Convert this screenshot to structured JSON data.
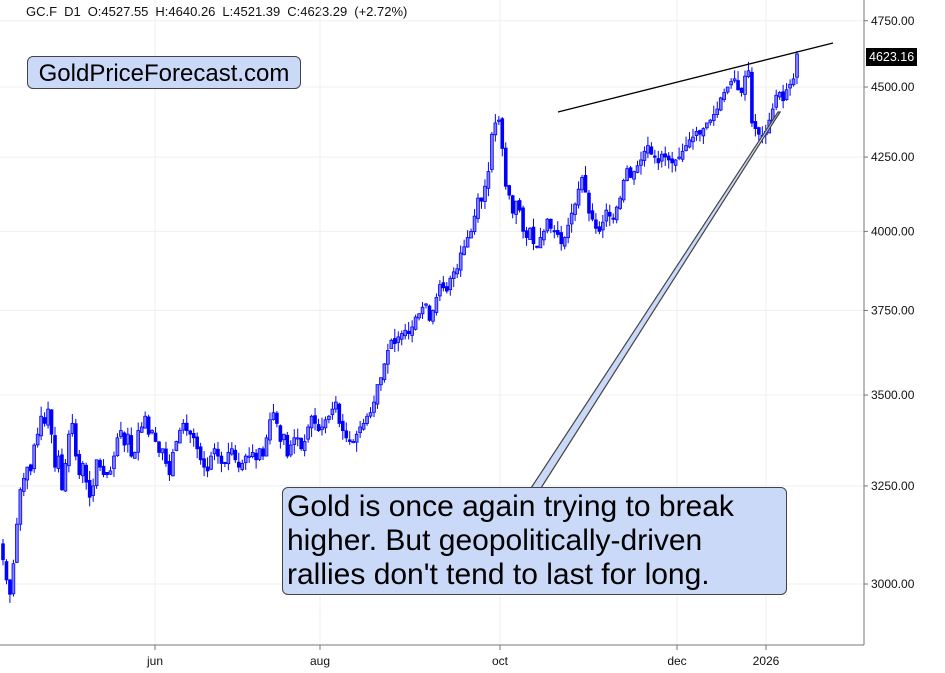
{
  "header": {
    "symbol": "GC.F",
    "timeframe": "D1",
    "open": "O:4527.55",
    "high": "H:4640.26",
    "low": "L:4521.39",
    "close": "C:4623.29",
    "change": "(+2.72%)"
  },
  "price_tag": "4623.16",
  "brand": "GoldPriceForecast.com",
  "callout": {
    "lines": [
      "Gold is once again trying to break",
      "higher. But geopolitically-driven",
      "rallies don't tend to last for long."
    ]
  },
  "colors": {
    "candle": "#0000ff",
    "candle_up_fill": "#8080ff",
    "trendline": "#000000",
    "grid": "#efefef",
    "annotation_fill": "#c9d9f7",
    "price_tag_bg": "#000000"
  },
  "chart_data": {
    "type": "candlestick",
    "title": "GC.F D1",
    "scale": "log",
    "ylim": [
      2820,
      4800
    ],
    "yticks": [
      3000,
      3250,
      3500,
      3750,
      4000,
      4250,
      4500,
      4750
    ],
    "ytick_labels": [
      "3000.00",
      "3250.00",
      "3500.00",
      "3750.00",
      "4000.00",
      "4250.00",
      "4500.00",
      "4750.00"
    ],
    "xtick_labels": [
      "jun",
      "aug",
      "oct",
      "dec",
      "2026"
    ],
    "last_price": 4623.16,
    "grid": true,
    "closes": [
      3060,
      3010,
      2975,
      3050,
      3150,
      3240,
      3270,
      3300,
      3290,
      3360,
      3390,
      3440,
      3420,
      3460,
      3390,
      3300,
      3330,
      3240,
      3310,
      3390,
      3420,
      3330,
      3280,
      3310,
      3260,
      3220,
      3250,
      3320,
      3300,
      3280,
      3280,
      3290,
      3330,
      3380,
      3400,
      3360,
      3390,
      3330,
      3340,
      3400,
      3410,
      3440,
      3390,
      3400,
      3370,
      3340,
      3350,
      3310,
      3280,
      3340,
      3370,
      3400,
      3420,
      3400,
      3390,
      3380,
      3350,
      3320,
      3300,
      3290,
      3330,
      3350,
      3330,
      3310,
      3310,
      3340,
      3350,
      3320,
      3300,
      3310,
      3330,
      3330,
      3340,
      3320,
      3350,
      3330,
      3380,
      3430,
      3450,
      3420,
      3370,
      3390,
      3330,
      3360,
      3380,
      3380,
      3350,
      3370,
      3410,
      3440,
      3420,
      3400,
      3410,
      3430,
      3440,
      3460,
      3480,
      3420,
      3400,
      3380,
      3370,
      3370,
      3390,
      3410,
      3420,
      3440,
      3450,
      3480,
      3530,
      3550,
      3590,
      3630,
      3660,
      3650,
      3670,
      3680,
      3690,
      3680,
      3700,
      3730,
      3740,
      3760,
      3770,
      3720,
      3750,
      3790,
      3830,
      3820,
      3810,
      3850,
      3870,
      3880,
      3930,
      3950,
      3980,
      4000,
      4050,
      4110,
      4100,
      4150,
      4200,
      4330,
      4370,
      4380,
      4280,
      4150,
      4120,
      4060,
      4100,
      4070,
      4000,
      3980,
      4010,
      3960,
      3950,
      3980,
      4000,
      4040,
      4010,
      4000,
      3990,
      3960,
      3980,
      4020,
      4060,
      4090,
      4140,
      4180,
      4130,
      4060,
      4040,
      4010,
      4000,
      4030,
      4070,
      4050,
      4040,
      4080,
      4110,
      4170,
      4210,
      4180,
      4200,
      4220,
      4240,
      4270,
      4290,
      4260,
      4250,
      4230,
      4260,
      4250,
      4240,
      4230,
      4240,
      4250,
      4270,
      4290,
      4310,
      4320,
      4340,
      4330,
      4350,
      4370,
      4380,
      4400,
      4420,
      4460,
      4480,
      4500,
      4520,
      4530,
      4490,
      4480,
      4540,
      4560,
      4370,
      4350,
      4330,
      4320,
      4340,
      4380,
      4420,
      4470,
      4480,
      4450,
      4490,
      4510,
      4530,
      4623
    ]
  }
}
